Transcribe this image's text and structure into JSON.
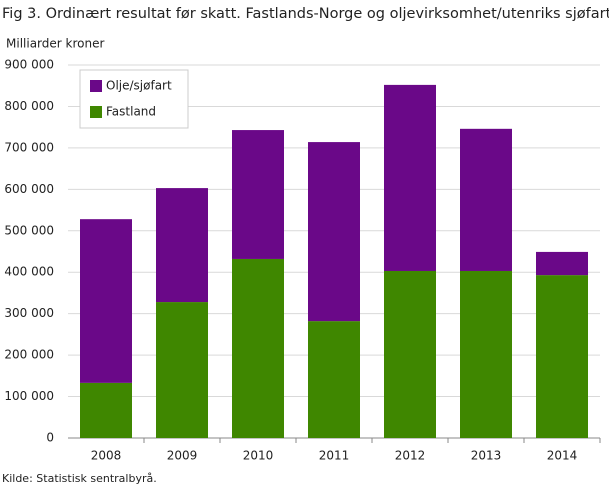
{
  "chart_data": {
    "type": "stacked_bar",
    "title": "Fig 3. Ordinært resultat før skatt. Fastlands-Norge og oljevirksomhet/utenriks sjøfart",
    "y_label": "Milliarder  kroner",
    "source": "Kilde: Statistisk sentralbyrå.",
    "categories": [
      "2008",
      "2009",
      "2010",
      "2011",
      "2012",
      "2013",
      "2014"
    ],
    "series": [
      {
        "name": "Fastland",
        "color": "#3f8700",
        "values": [
          133000,
          328000,
          432000,
          282000,
          403000,
          403000,
          393000
        ]
      },
      {
        "name": "Olje/sjøfart",
        "color": "#6a0888",
        "values": [
          395000,
          275000,
          311000,
          432000,
          449000,
          343000,
          56000
        ]
      }
    ],
    "ylim": [
      0,
      900000
    ],
    "yticks": [
      0,
      {
        "value": 100000,
        "label": "100 000"
      },
      {
        "value": 200000,
        "label": "200 000"
      },
      {
        "value": 300000,
        "label": "300 000"
      },
      {
        "value": 400000,
        "label": "400 000"
      },
      {
        "value": 500000,
        "label": "500 000"
      },
      {
        "value": 600000,
        "label": "600 000"
      },
      {
        "value": 700000,
        "label": "700 000"
      },
      {
        "value": 800000,
        "label": "800 000"
      },
      {
        "value": 900000,
        "label": "900 000"
      }
    ],
    "grid": true,
    "legend": "upper-left"
  }
}
